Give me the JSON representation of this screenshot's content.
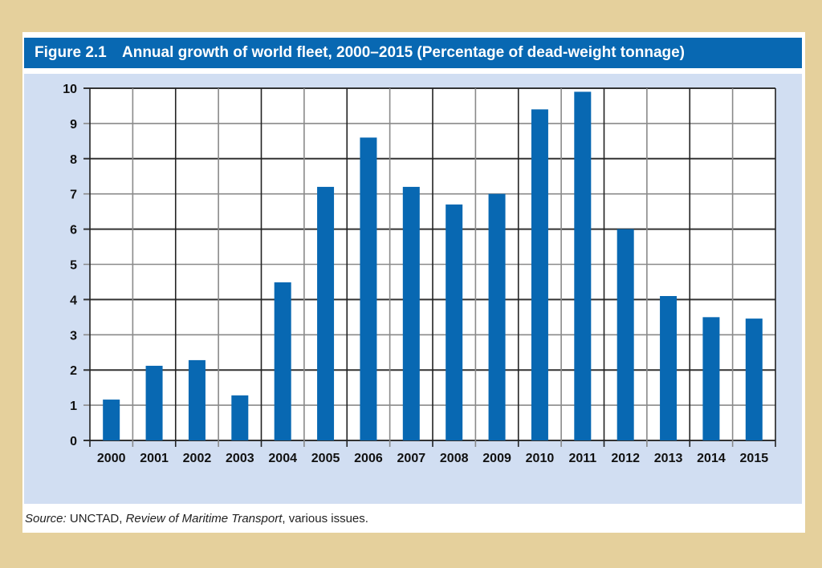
{
  "figure": {
    "number_label": "Figure 2.1",
    "title": "Annual growth of world fleet, 2000–2015 (Percentage of dead-weight tonnage)"
  },
  "source": {
    "prefix": "Source:",
    "org": " UNCTAD, ",
    "publication": "Review of Maritime Transport",
    "suffix": ", various issues."
  },
  "colors": {
    "bar": "#0868b2",
    "title_bar": "#0868b2",
    "panel": "#d1def2",
    "frame": "#e5d09c"
  },
  "chart_data": {
    "type": "bar",
    "title": "Annual growth of world fleet, 2000–2015 (Percentage of dead-weight tonnage)",
    "xlabel": "",
    "ylabel": "",
    "categories": [
      "2000",
      "2001",
      "2002",
      "2003",
      "2004",
      "2005",
      "2006",
      "2007",
      "2008",
      "2009",
      "2010",
      "2011",
      "2012",
      "2013",
      "2014",
      "2015"
    ],
    "values": [
      1.16,
      2.12,
      2.28,
      1.28,
      4.49,
      7.2,
      8.6,
      7.2,
      6.7,
      7.0,
      9.4,
      9.9,
      6.0,
      4.1,
      3.5,
      3.46
    ],
    "ylim": [
      0,
      10
    ],
    "yticks": [
      "0",
      "1",
      "2",
      "3",
      "4",
      "5",
      "6",
      "7",
      "8",
      "9",
      "10"
    ],
    "grid": true,
    "legend": "none"
  }
}
